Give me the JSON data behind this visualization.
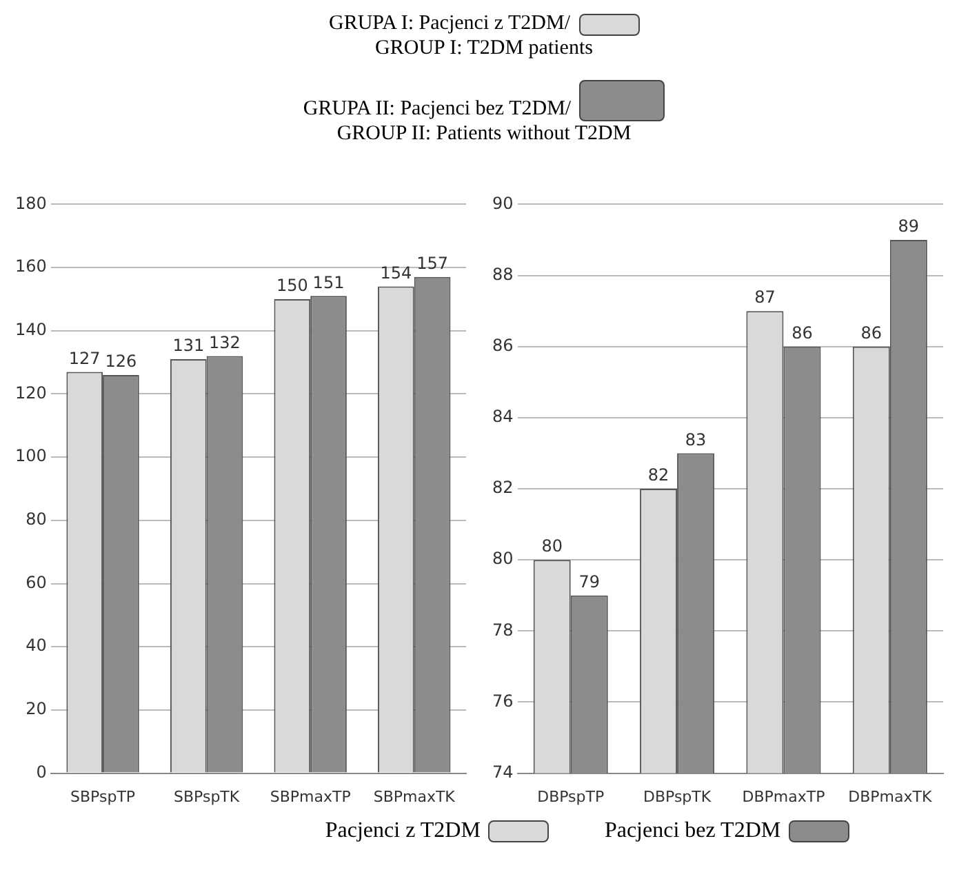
{
  "chart_data": [
    {
      "type": "bar",
      "annotations": [
        "GRUPA I:  Pacjenci z T2DM/",
        "GROUP I: T2DM patients",
        "GRUPA II:  Pacjenci bez T2DM/",
        "GROUP II: Patients without T2DM"
      ],
      "categories": [
        "SBPspTP",
        "SBPspTK",
        "SBPmaxTP",
        "SBPmaxTK"
      ],
      "series": [
        {
          "name": "Pacjenci z T2DM",
          "color": "#d9d9d9",
          "values": [
            127,
            131,
            150,
            154
          ]
        },
        {
          "name": "Pacjenci bez T2DM",
          "color": "#8c8c8c",
          "values": [
            126,
            132,
            151,
            157
          ]
        }
      ],
      "ylim": [
        0,
        180
      ],
      "yticks": [
        0,
        20,
        40,
        60,
        80,
        100,
        120,
        140,
        160,
        180
      ],
      "grid": "y",
      "data_labels": true,
      "legend": "bottom"
    },
    {
      "type": "bar",
      "categories": [
        "DBPspTP",
        "DBPspTK",
        "DBPmaxTP",
        "DBPmaxTK"
      ],
      "series": [
        {
          "color": "#d9d9d9",
          "values": [
            80,
            82,
            87,
            86
          ]
        },
        {
          "color": "#8c8c8c",
          "values": [
            79,
            83,
            86,
            89
          ]
        }
      ],
      "ylim": [
        74,
        90
      ],
      "yticks": [
        74,
        76,
        78,
        80,
        82,
        84,
        86,
        88,
        90
      ],
      "grid": "y",
      "data_labels": true
    }
  ]
}
